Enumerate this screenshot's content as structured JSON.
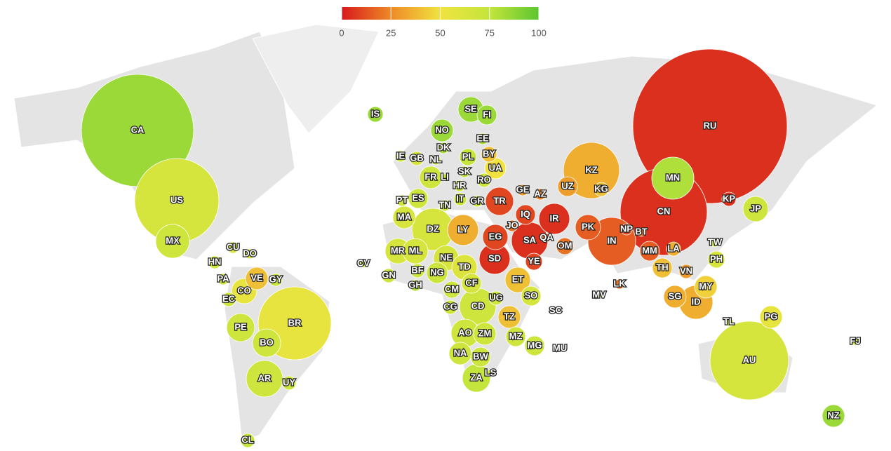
{
  "legend": {
    "ticks": [
      0,
      25,
      50,
      75,
      100
    ],
    "colors": [
      "#d7191c",
      "#ee8a26",
      "#f0e340",
      "#c4e53c",
      "#5cc630"
    ]
  },
  "countries": [
    {
      "code": "CA",
      "value": 85
    },
    {
      "code": "US",
      "value": 65
    },
    {
      "code": "MX",
      "value": 70
    },
    {
      "code": "CU",
      "value": 65
    },
    {
      "code": "DO",
      "value": 65
    },
    {
      "code": "HN",
      "value": 70
    },
    {
      "code": "PA",
      "value": 70
    },
    {
      "code": "VE",
      "value": 40
    },
    {
      "code": "GY",
      "value": 75
    },
    {
      "code": "CO",
      "value": 55
    },
    {
      "code": "EC",
      "value": 70
    },
    {
      "code": "PE",
      "value": 70
    },
    {
      "code": "BR",
      "value": 55
    },
    {
      "code": "BO",
      "value": 70
    },
    {
      "code": "AR",
      "value": 70
    },
    {
      "code": "UY",
      "value": 70
    },
    {
      "code": "CL",
      "value": 75
    },
    {
      "code": "IS",
      "value": 85
    },
    {
      "code": "NO",
      "value": 85
    },
    {
      "code": "SE",
      "value": 85
    },
    {
      "code": "FI",
      "value": 85
    },
    {
      "code": "EE",
      "value": 80
    },
    {
      "code": "DK",
      "value": 80
    },
    {
      "code": "IE",
      "value": 70
    },
    {
      "code": "GB",
      "value": 65
    },
    {
      "code": "NL",
      "value": 75
    },
    {
      "code": "PL",
      "value": 75
    },
    {
      "code": "BY",
      "value": 40
    },
    {
      "code": "UA",
      "value": 50
    },
    {
      "code": "FR",
      "value": 70
    },
    {
      "code": "LI",
      "value": 75
    },
    {
      "code": "SK",
      "value": 75
    },
    {
      "code": "HR",
      "value": 70
    },
    {
      "code": "RO",
      "value": 70
    },
    {
      "code": "PT",
      "value": 70
    },
    {
      "code": "ES",
      "value": 70
    },
    {
      "code": "IT",
      "value": 70
    },
    {
      "code": "TN",
      "value": 70
    },
    {
      "code": "GR",
      "value": 70
    },
    {
      "code": "TR",
      "value": 10
    },
    {
      "code": "GE",
      "value": 30
    },
    {
      "code": "AZ",
      "value": 25
    },
    {
      "code": "MA",
      "value": 65
    },
    {
      "code": "DZ",
      "value": 65
    },
    {
      "code": "LY",
      "value": 35
    },
    {
      "code": "EG",
      "value": 10
    },
    {
      "code": "JO",
      "value": 20
    },
    {
      "code": "IQ",
      "value": 10
    },
    {
      "code": "IR",
      "value": 5
    },
    {
      "code": "QA",
      "value": 15
    },
    {
      "code": "SA",
      "value": 5
    },
    {
      "code": "OM",
      "value": 20
    },
    {
      "code": "YE",
      "value": 10
    },
    {
      "code": "SD",
      "value": 5
    },
    {
      "code": "UZ",
      "value": 30
    },
    {
      "code": "KZ",
      "value": 35
    },
    {
      "code": "KG",
      "value": 40
    },
    {
      "code": "MN",
      "value": 80
    },
    {
      "code": "RU",
      "value": 5
    },
    {
      "code": "CN",
      "value": 5
    },
    {
      "code": "KP",
      "value": 5
    },
    {
      "code": "JP",
      "value": 70
    },
    {
      "code": "PK",
      "value": 15
    },
    {
      "code": "NP",
      "value": 10
    },
    {
      "code": "BT",
      "value": 20
    },
    {
      "code": "IN",
      "value": 15
    },
    {
      "code": "MM",
      "value": 15
    },
    {
      "code": "LA",
      "value": 35
    },
    {
      "code": "TH",
      "value": 40
    },
    {
      "code": "VN",
      "value": 30
    },
    {
      "code": "TW",
      "value": 70
    },
    {
      "code": "PH",
      "value": 65
    },
    {
      "code": "MY",
      "value": 45
    },
    {
      "code": "SG",
      "value": 35
    },
    {
      "code": "ID",
      "value": 35
    },
    {
      "code": "TL",
      "value": 70
    },
    {
      "code": "PG",
      "value": 55
    },
    {
      "code": "AU",
      "value": 65
    },
    {
      "code": "NZ",
      "value": 85
    },
    {
      "code": "FJ",
      "value": 70
    },
    {
      "code": "MR",
      "value": 65
    },
    {
      "code": "ML",
      "value": 65
    },
    {
      "code": "NE",
      "value": 65
    },
    {
      "code": "TD",
      "value": 60
    },
    {
      "code": "CV",
      "value": 70
    },
    {
      "code": "GN",
      "value": 70
    },
    {
      "code": "BF",
      "value": 70
    },
    {
      "code": "NG",
      "value": 70
    },
    {
      "code": "GH",
      "value": 80
    },
    {
      "code": "CM",
      "value": 70
    },
    {
      "code": "CF",
      "value": 65
    },
    {
      "code": "ET",
      "value": 40
    },
    {
      "code": "SO",
      "value": 65
    },
    {
      "code": "UG",
      "value": 70
    },
    {
      "code": "CD",
      "value": 70
    },
    {
      "code": "CG",
      "value": 70
    },
    {
      "code": "TZ",
      "value": 40
    },
    {
      "code": "AO",
      "value": 70
    },
    {
      "code": "ZM",
      "value": 70
    },
    {
      "code": "MZ",
      "value": 70
    },
    {
      "code": "MG",
      "value": 70
    },
    {
      "code": "MU",
      "value": 70
    },
    {
      "code": "SC",
      "value": 70
    },
    {
      "code": "MV",
      "value": 70
    },
    {
      "code": "LK",
      "value": 20
    },
    {
      "code": "NA",
      "value": 70
    },
    {
      "code": "BW",
      "value": 70
    },
    {
      "code": "ZA",
      "value": 75
    },
    {
      "code": "LS",
      "value": 70
    }
  ]
}
